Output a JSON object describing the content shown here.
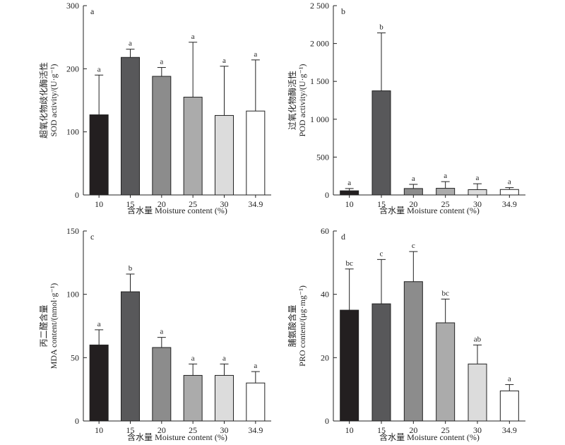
{
  "figure": {
    "x_axis_title": "含水量 Moisture content (%)"
  },
  "chart_data": [
    {
      "type": "bar",
      "panel_label": "a",
      "ylabel_cn": "超氧化物歧化酶活性",
      "ylabel_en": "SOD activity/(U·g⁻¹)",
      "xlabel": "含水量 Moisture content (%)",
      "categories": [
        "10",
        "15",
        "20",
        "25",
        "30",
        "34.9"
      ],
      "values": [
        127,
        218,
        188,
        155,
        126,
        133
      ],
      "errors": [
        63,
        13,
        14,
        87,
        78,
        81
      ],
      "significance": [
        "a",
        "a",
        "a",
        "a",
        "a",
        "a"
      ],
      "ylim": [
        0,
        300
      ],
      "yticks": [
        0,
        100,
        200,
        300
      ],
      "ytick_labels": [
        "0",
        "100",
        "200",
        "300"
      ],
      "bar_colors": [
        "#231f20",
        "#58585a",
        "#8c8c8c",
        "#ababab",
        "#dcdcdc",
        "#ffffff"
      ]
    },
    {
      "type": "bar",
      "panel_label": "b",
      "ylabel_cn": "过氧化物酶活性",
      "ylabel_en": "POD activity/(U·g⁻¹)",
      "xlabel": "含水量 Moisture content (%)",
      "categories": [
        "10",
        "15",
        "20",
        "25",
        "30",
        "34.9"
      ],
      "values": [
        55,
        1375,
        85,
        88,
        70,
        72
      ],
      "errors": [
        30,
        765,
        55,
        88,
        78,
        25
      ],
      "significance": [
        "a",
        "b",
        "a",
        "a",
        "a",
        "a"
      ],
      "ylim": [
        0,
        2500
      ],
      "yticks": [
        0,
        500,
        1000,
        1500,
        2000,
        2500
      ],
      "ytick_labels": [
        "0",
        "500",
        "1 000",
        "1 500",
        "2 000",
        "2 500"
      ],
      "bar_colors": [
        "#231f20",
        "#58585a",
        "#8c8c8c",
        "#ababab",
        "#dcdcdc",
        "#ffffff"
      ]
    },
    {
      "type": "bar",
      "panel_label": "c",
      "ylabel_cn": "丙二醛含量",
      "ylabel_en": "MDA content/(nmol·g⁻¹)",
      "xlabel": "含水量 Moisture content (%)",
      "categories": [
        "10",
        "15",
        "20",
        "25",
        "30",
        "34.9"
      ],
      "values": [
        60,
        102,
        58,
        36,
        36,
        30
      ],
      "errors": [
        12,
        14,
        8,
        9,
        9,
        9
      ],
      "significance": [
        "a",
        "b",
        "a",
        "a",
        "a",
        "a"
      ],
      "ylim": [
        0,
        150
      ],
      "yticks": [
        0,
        50,
        100,
        150
      ],
      "ytick_labels": [
        "0",
        "50",
        "100",
        "150"
      ],
      "bar_colors": [
        "#231f20",
        "#58585a",
        "#8c8c8c",
        "#ababab",
        "#dcdcdc",
        "#ffffff"
      ]
    },
    {
      "type": "bar",
      "panel_label": "d",
      "ylabel_cn": "脯氨酸含量",
      "ylabel_en": "PRO content/(μg·mg⁻¹)",
      "xlabel": "含水量 Moisture content (%)",
      "categories": [
        "10",
        "15",
        "20",
        "25",
        "30",
        "34.9"
      ],
      "values": [
        35,
        37,
        44,
        31,
        18,
        9.5
      ],
      "errors": [
        13,
        14,
        9.5,
        7.5,
        6,
        2
      ],
      "significance": [
        "bc",
        "c",
        "c",
        "bc",
        "ab",
        "a"
      ],
      "ylim": [
        0,
        60
      ],
      "yticks": [
        0,
        20,
        40,
        60
      ],
      "ytick_labels": [
        "0",
        "20",
        "40",
        "60"
      ],
      "bar_colors": [
        "#231f20",
        "#58585a",
        "#8c8c8c",
        "#ababab",
        "#dcdcdc",
        "#ffffff"
      ]
    }
  ]
}
